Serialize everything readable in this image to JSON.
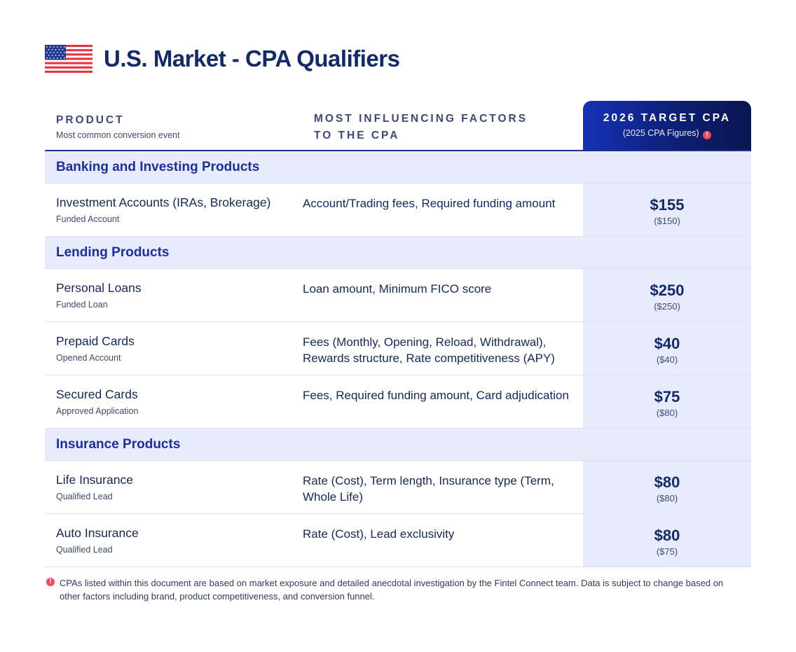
{
  "header": {
    "flag_icon": "us-flag-icon",
    "title": "U.S. Market - CPA Qualifiers"
  },
  "table_header": {
    "product_label": "PRODUCT",
    "product_sub": "Most common conversion event",
    "factors_label": "MOST INFLUENCING FACTORS TO THE CPA",
    "cpa_label": "2026 TARGET CPA",
    "cpa_sub": "(2025 CPA Figures)"
  },
  "sections": [
    {
      "title": "Banking and Investing Products",
      "rows": [
        {
          "product": "Investment Accounts (IRAs, Brokerage)",
          "event": "Funded Account",
          "factors": "Account/Trading fees, Required funding amount",
          "cpa": "$155",
          "prev": "($150)"
        }
      ]
    },
    {
      "title": "Lending Products",
      "rows": [
        {
          "product": "Personal Loans",
          "event": "Funded Loan",
          "factors": "Loan amount, Minimum FICO score",
          "cpa": "$250",
          "prev": "($250)"
        },
        {
          "product": "Prepaid Cards",
          "event": "Opened Account",
          "factors": "Fees (Monthly, Opening, Reload, Withdrawal), Rewards structure, Rate competitiveness (APY)",
          "cpa": "$40",
          "prev": "($40)"
        },
        {
          "product": "Secured Cards",
          "event": "Approved Application",
          "factors": "Fees, Required funding amount, Card adjudication",
          "cpa": "$75",
          "prev": "($80)"
        }
      ]
    },
    {
      "title": "Insurance Products",
      "rows": [
        {
          "product": "Life Insurance",
          "event": "Qualified Lead",
          "factors": "Rate (Cost), Term length, Insurance type (Term, Whole Life)",
          "cpa": "$80",
          "prev": "($80)"
        },
        {
          "product": "Auto Insurance",
          "event": "Qualified Lead",
          "factors": "Rate (Cost), Lead exclusivity",
          "cpa": "$80",
          "prev": "($75)"
        }
      ]
    }
  ],
  "footnote": {
    "icon": "alert-icon",
    "text": "CPAs listed within this document are based on market exposure and detailed anecdotal investigation by the Fintel Connect team. Data is subject to change based on other factors including brand, product competitiveness, and conversion funnel."
  },
  "colors": {
    "navy": "#12296a",
    "section_bg": "#e7ebfc",
    "accent_blue": "#1d2ea0",
    "alert_red": "#ef4a5b"
  }
}
